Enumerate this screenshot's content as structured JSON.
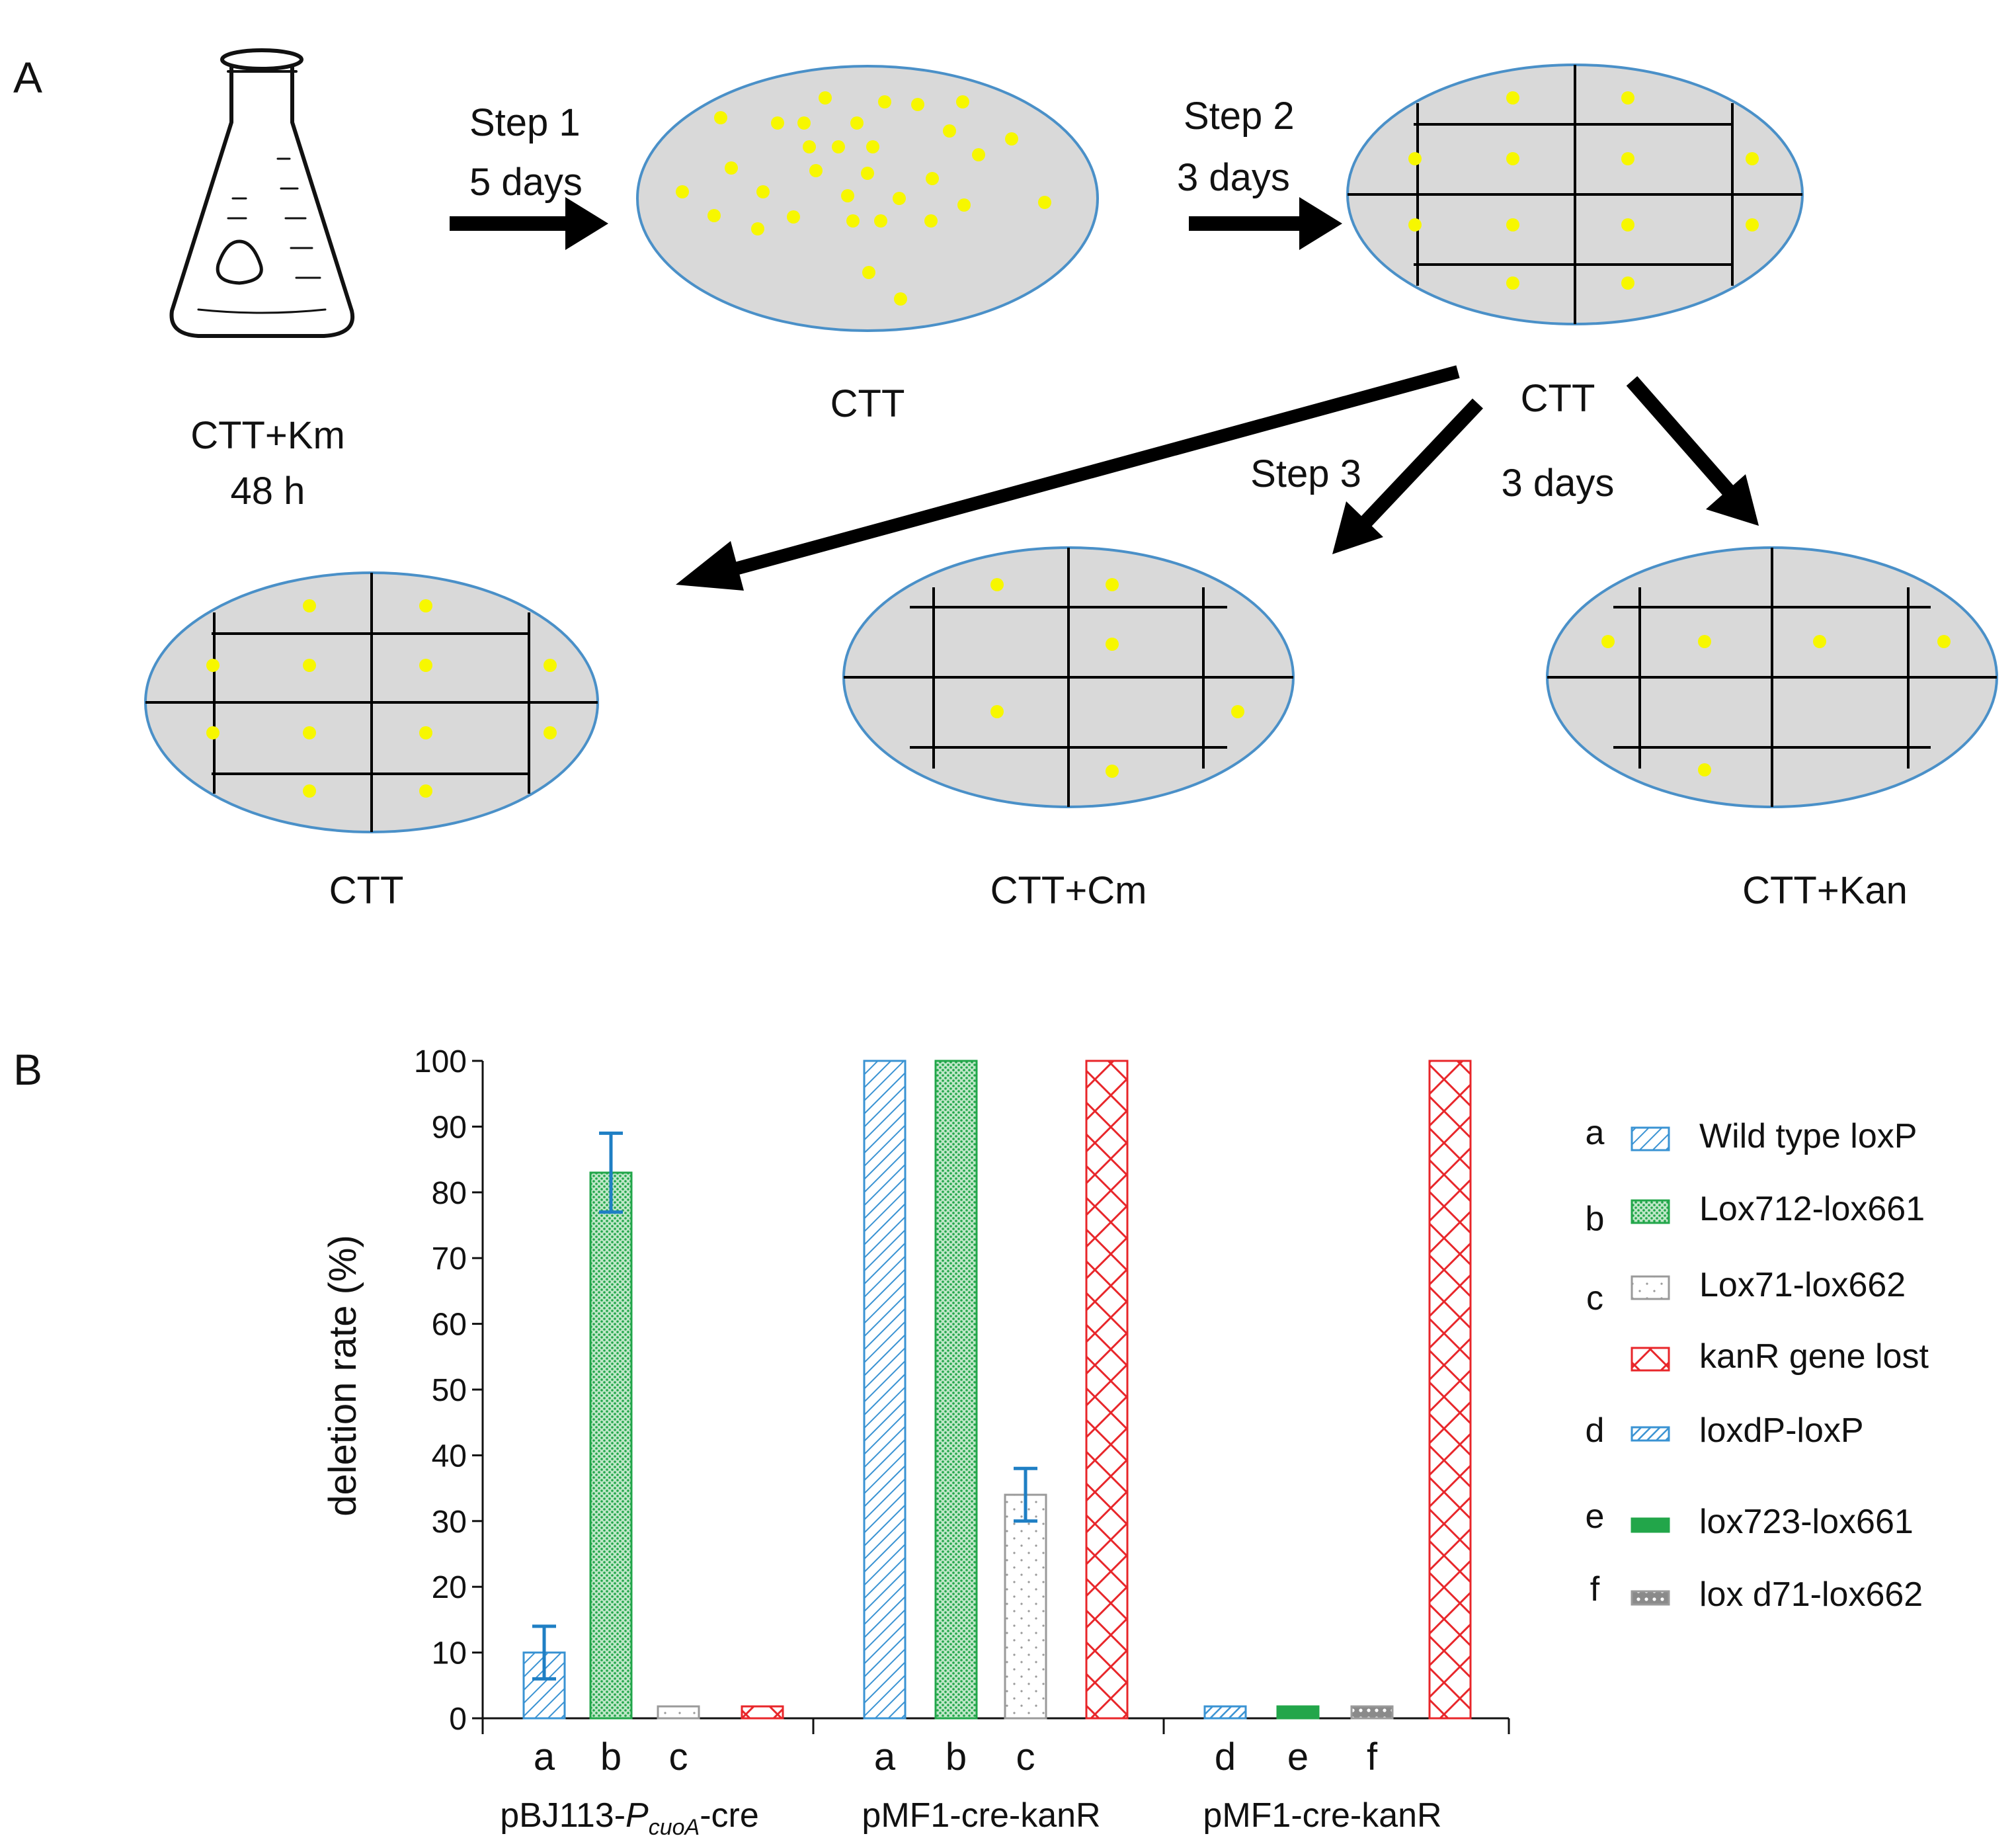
{
  "panel_a": {
    "letter": "A",
    "flask_label_line1": "CTT+Km",
    "flask_label_line2": "48 h",
    "step1_line1": "Step 1",
    "step1_line2": "5 days",
    "step2_line1": "Step 2",
    "step2_line2": "3 days",
    "step3_label": "Step 3",
    "step3_days": "3 days",
    "plate1_label": "CTT",
    "plate2_label": "CTT",
    "plate3_label": "CTT",
    "plate4_label": "CTT+Cm",
    "plate5_label": "CTT+Kan"
  },
  "panel_b": {
    "letter": "B",
    "colors": {
      "blue": "#3a93d3",
      "green": "#22a64a",
      "gray": "#9a9a9a",
      "red": "#e8262a",
      "error": "#1f7fc4"
    }
  },
  "chart_data": {
    "type": "bar",
    "ylabel": "deletion rate (%)",
    "ylim": [
      0,
      100
    ],
    "yticks": [
      0,
      10,
      20,
      30,
      40,
      50,
      60,
      70,
      80,
      90,
      100
    ],
    "groups": [
      {
        "name_prefix": "pBJ113-",
        "name_italic": "P",
        "name_sub": "cuoA",
        "name_suffix": "-cre",
        "bars": [
          {
            "label": "a",
            "series": "Wild type loxP",
            "value": 10,
            "err": 4
          },
          {
            "label": "b",
            "series": "Lox712-lox661",
            "value": 83,
            "err": 6
          },
          {
            "label": "c",
            "series": "Lox71-lox662",
            "value": 1
          },
          {
            "label": "",
            "series": "kanR gene lost",
            "value": 1
          }
        ]
      },
      {
        "name": "pMF1-cre-kanR",
        "bars": [
          {
            "label": "a",
            "series": "Wild type loxP",
            "value": 100
          },
          {
            "label": "b",
            "series": "Lox712-lox661",
            "value": 100
          },
          {
            "label": "c",
            "series": "Lox71-lox662",
            "value": 34,
            "err": 4
          },
          {
            "label": "",
            "series": "kanR gene lost",
            "value": 100
          }
        ]
      },
      {
        "name": "pMF1-cre-kanR",
        "bars": [
          {
            "label": "d",
            "series": "loxdP-loxP",
            "value": 1
          },
          {
            "label": "e",
            "series": "lox723-lox661",
            "value": 1
          },
          {
            "label": "f",
            "series": "lox d71-lox662",
            "value": 1
          },
          {
            "label": "",
            "series": "kanR gene lost",
            "value": 100
          }
        ]
      }
    ],
    "legend": [
      {
        "key": "a",
        "name": "Wild type loxP"
      },
      {
        "key": "b",
        "name": "Lox712-lox661"
      },
      {
        "key": "c",
        "name": "Lox71-lox662"
      },
      {
        "key": "",
        "name": "kanR gene lost"
      },
      {
        "key": "d",
        "name": "loxdP-loxP"
      },
      {
        "key": "e",
        "name": "lox723-lox661"
      },
      {
        "key": "f",
        "name": "lox d71-lox662"
      }
    ]
  }
}
